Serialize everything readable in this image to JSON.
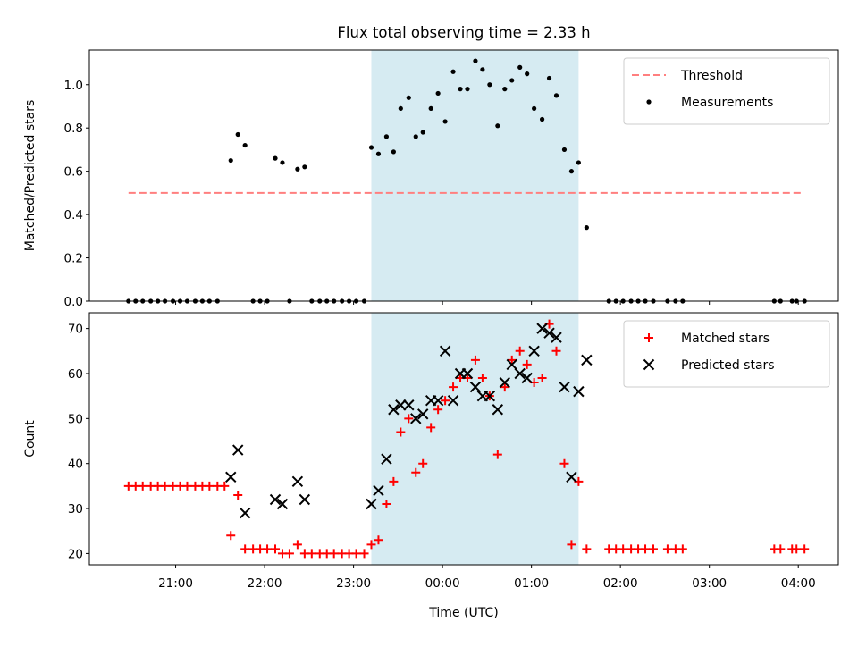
{
  "chart_data": {
    "title": "Flux total observing time = 2.33 h",
    "xlabel": "Time (UTC)",
    "x_tick_labels": [
      "21:00",
      "22:00",
      "23:00",
      "00:00",
      "01:00",
      "02:00",
      "03:00",
      "04:00"
    ],
    "x_ticks_hours": [
      21,
      22,
      23,
      24,
      25,
      26,
      27,
      28
    ],
    "xlim_hours": [
      20.03,
      28.45
    ],
    "shaded_span_hours": [
      23.2,
      25.53
    ],
    "shade_color": "#add8e6",
    "panels": [
      {
        "type": "scatter",
        "ylabel": "Matched/Predicted stars",
        "ylim": [
          0,
          1.16
        ],
        "y_ticks": [
          0.0,
          0.2,
          0.4,
          0.6,
          0.8,
          1.0
        ],
        "y_tick_labels": [
          "0.0",
          "0.2",
          "0.4",
          "0.6",
          "0.8",
          "1.0"
        ],
        "legend_position": "upper right",
        "threshold": {
          "name": "Threshold",
          "y": 0.5,
          "x_range_hours": [
            20.47,
            28.03
          ],
          "color": "#ff7f7f",
          "style": "dashed"
        },
        "series": [
          {
            "name": "Measurements",
            "color": "#000000",
            "marker": "dot",
            "x_hours": [
              20.47,
              20.55,
              20.63,
              20.72,
              20.8,
              20.88,
              20.97,
              21.05,
              21.13,
              21.22,
              21.3,
              21.38,
              21.47,
              21.62,
              21.7,
              21.78,
              21.87,
              21.95,
              22.03,
              22.12,
              22.2,
              22.28,
              22.37,
              22.45,
              22.53,
              22.62,
              22.7,
              22.78,
              22.87,
              22.95,
              23.03,
              23.12,
              23.2,
              23.28,
              23.37,
              23.45,
              23.53,
              23.62,
              23.7,
              23.78,
              23.87,
              23.95,
              24.03,
              24.12,
              24.2,
              24.28,
              24.37,
              24.45,
              24.53,
              24.62,
              24.7,
              24.78,
              24.87,
              24.95,
              25.03,
              25.12,
              25.2,
              25.28,
              25.37,
              25.45,
              25.53,
              25.62,
              25.87,
              25.95,
              26.03,
              26.12,
              26.2,
              26.28,
              26.37,
              26.53,
              26.62,
              26.7,
              27.73,
              27.8,
              27.93,
              27.98,
              28.07
            ],
            "y": [
              0,
              0,
              0,
              0,
              0,
              0,
              0,
              0,
              0,
              0,
              0,
              0,
              0,
              0.65,
              0.77,
              0.72,
              0,
              0,
              0,
              0.66,
              0.64,
              0,
              0.61,
              0.62,
              0,
              0,
              0,
              0,
              0,
              0,
              0,
              0,
              0.71,
              0.68,
              0.76,
              0.69,
              0.89,
              0.94,
              0.76,
              0.78,
              0.89,
              0.96,
              0.83,
              1.06,
              0.98,
              0.98,
              1.11,
              1.07,
              1.0,
              0.81,
              0.98,
              1.02,
              1.08,
              1.05,
              0.89,
              0.84,
              1.03,
              0.95,
              0.7,
              0.6,
              0.64,
              0.34,
              0,
              0,
              0,
              0,
              0,
              0,
              0,
              0,
              0,
              0,
              0,
              0,
              0,
              0,
              0
            ]
          }
        ]
      },
      {
        "type": "scatter",
        "ylabel": "Count",
        "ylim": [
          17.5,
          73.5
        ],
        "y_ticks": [
          20,
          30,
          40,
          50,
          60,
          70
        ],
        "y_tick_labels": [
          "20",
          "30",
          "40",
          "50",
          "60",
          "70"
        ],
        "legend_position": "upper right",
        "series": [
          {
            "name": "Matched stars",
            "color": "#ff0000",
            "marker": "plus",
            "x_hours": [
              20.47,
              20.55,
              20.63,
              20.72,
              20.8,
              20.88,
              20.97,
              21.05,
              21.13,
              21.22,
              21.3,
              21.38,
              21.47,
              21.55,
              21.62,
              21.7,
              21.78,
              21.87,
              21.95,
              22.03,
              22.12,
              22.2,
              22.28,
              22.37,
              22.45,
              22.53,
              22.62,
              22.7,
              22.78,
              22.87,
              22.95,
              23.03,
              23.12,
              23.2,
              23.28,
              23.37,
              23.45,
              23.53,
              23.62,
              23.7,
              23.78,
              23.87,
              23.95,
              24.03,
              24.12,
              24.2,
              24.28,
              24.37,
              24.45,
              24.53,
              24.62,
              24.7,
              24.78,
              24.87,
              24.95,
              25.03,
              25.12,
              25.2,
              25.28,
              25.37,
              25.45,
              25.53,
              25.62,
              25.87,
              25.95,
              26.03,
              26.12,
              26.2,
              26.28,
              26.37,
              26.53,
              26.62,
              26.7,
              27.73,
              27.8,
              27.93,
              27.98,
              28.07
            ],
            "y": [
              35,
              35,
              35,
              35,
              35,
              35,
              35,
              35,
              35,
              35,
              35,
              35,
              35,
              35,
              24,
              33,
              21,
              21,
              21,
              21,
              21,
              20,
              20,
              22,
              20,
              20,
              20,
              20,
              20,
              20,
              20,
              20,
              20,
              22,
              23,
              31,
              36,
              47,
              50,
              38,
              40,
              48,
              52,
              54,
              57,
              59,
              59,
              63,
              59,
              55,
              42,
              57,
              63,
              65,
              62,
              58,
              59,
              71,
              65,
              40,
              22,
              36,
              21,
              21,
              21,
              21,
              21,
              21,
              21,
              21,
              21,
              21,
              21,
              21,
              21,
              21,
              21,
              21
            ]
          },
          {
            "name": "Predicted stars",
            "color": "#000000",
            "marker": "x",
            "x_hours": [
              21.62,
              21.7,
              21.78,
              22.12,
              22.2,
              22.37,
              22.45,
              23.2,
              23.28,
              23.37,
              23.45,
              23.53,
              23.62,
              23.7,
              23.78,
              23.87,
              23.95,
              24.03,
              24.12,
              24.2,
              24.28,
              24.37,
              24.45,
              24.53,
              24.62,
              24.7,
              24.78,
              24.87,
              24.95,
              25.03,
              25.12,
              25.2,
              25.28,
              25.37,
              25.45,
              25.53,
              25.62
            ],
            "y": [
              37,
              43,
              29,
              32,
              31,
              36,
              32,
              31,
              34,
              41,
              52,
              53,
              53,
              50,
              51,
              54,
              54,
              65,
              54,
              60,
              60,
              57,
              55,
              55,
              52,
              58,
              62,
              60,
              59,
              65,
              70,
              69,
              68,
              57,
              37,
              56,
              63
            ]
          }
        ]
      }
    ]
  }
}
